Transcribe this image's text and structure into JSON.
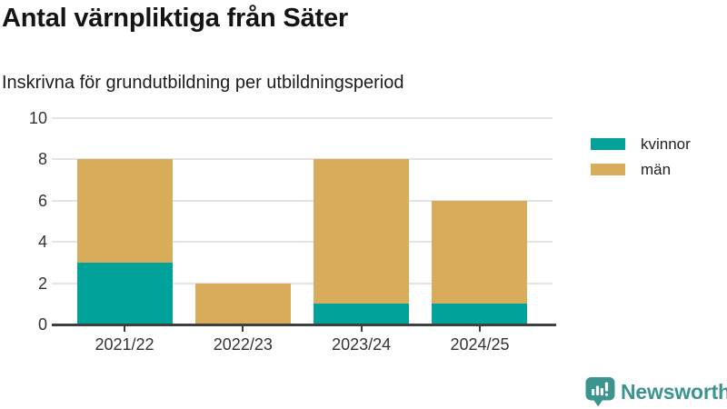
{
  "chart_data": {
    "type": "bar",
    "stacked": true,
    "title": "Antal värnpliktiga från Säter",
    "subtitle": "Inskrivna för grundutbildning per utbildningsperiod",
    "categories": [
      "2021/22",
      "2022/23",
      "2023/24",
      "2024/25"
    ],
    "series": [
      {
        "name": "kvinnor",
        "color": "#00A29A",
        "values": [
          3,
          0,
          1,
          1
        ]
      },
      {
        "name": "män",
        "color": "#D9AC5C",
        "values": [
          5,
          2,
          7,
          5
        ]
      }
    ],
    "totals": [
      8,
      2,
      8,
      6
    ],
    "xlabel": "",
    "ylabel": "",
    "ylim": [
      0,
      10
    ],
    "ytick_step": 2,
    "yticks": [
      0,
      2,
      4,
      6,
      8,
      10
    ],
    "grid": true,
    "legend_position": "right"
  },
  "branding": {
    "logo_text": "Newsworthy",
    "logo_icon": "bar-chart-speech-bubble-icon",
    "logo_color": "#3B948E"
  },
  "colors": {
    "axis_line": "#3F3F3F",
    "gridline": "#E4E4E4",
    "tick_label": "#333333",
    "legend_text": "#1F1F1F"
  }
}
